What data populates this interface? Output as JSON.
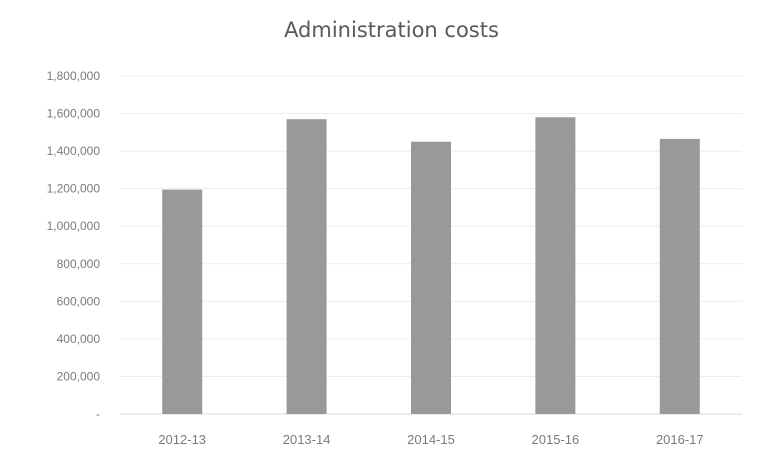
{
  "chart_data": {
    "type": "bar",
    "title": "Administration costs",
    "xlabel": "",
    "ylabel": "",
    "categories": [
      "2012-13",
      "2013-14",
      "2014-15",
      "2015-16",
      "2016-17"
    ],
    "values": [
      1195000,
      1570000,
      1450000,
      1580000,
      1465000
    ],
    "ylim": [
      0,
      1800000
    ],
    "yticks": [
      0,
      200000,
      400000,
      600000,
      800000,
      1000000,
      1200000,
      1400000,
      1600000,
      1800000
    ],
    "ytick_labels": [
      "-",
      "200,000",
      "400,000",
      "600,000",
      "800,000",
      "1,000,000",
      "1,200,000",
      "1,400,000",
      "1,600,000",
      "1,800,000"
    ],
    "grid": true,
    "legend": "none",
    "colors": {
      "bar": "#999999",
      "grid": "#ececec",
      "axis": "#d9d9d9",
      "tick_text": "#7a7a7a"
    }
  }
}
